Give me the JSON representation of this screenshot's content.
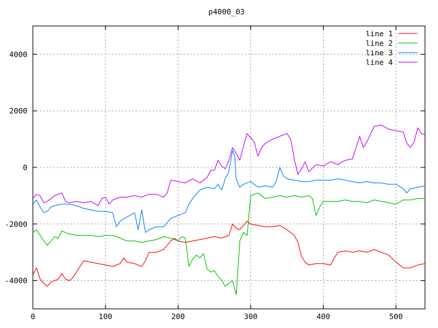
{
  "chart_data": {
    "type": "line",
    "title": "p4000_03",
    "xlabel": "",
    "ylabel": "",
    "xlim": [
      0,
      540
    ],
    "ylim": [
      -5000,
      5000
    ],
    "xticks": [
      0,
      100,
      200,
      300,
      400,
      500
    ],
    "yticks": [
      -4000,
      -2000,
      0,
      2000,
      4000
    ],
    "grid": true,
    "legend_position": "top-right",
    "series": [
      {
        "name": "line 1",
        "color": "#ff0000",
        "points": [
          [
            0,
            -3800
          ],
          [
            5,
            -3550
          ],
          [
            10,
            -3950
          ],
          [
            15,
            -4100
          ],
          [
            20,
            -4200
          ],
          [
            25,
            -4050
          ],
          [
            30,
            -4000
          ],
          [
            35,
            -3950
          ],
          [
            40,
            -3750
          ],
          [
            45,
            -3950
          ],
          [
            50,
            -4000
          ],
          [
            55,
            -3900
          ],
          [
            60,
            -3700
          ],
          [
            65,
            -3500
          ],
          [
            70,
            -3300
          ],
          [
            80,
            -3350
          ],
          [
            90,
            -3400
          ],
          [
            100,
            -3450
          ],
          [
            110,
            -3500
          ],
          [
            120,
            -3400
          ],
          [
            125,
            -3200
          ],
          [
            130,
            -3350
          ],
          [
            140,
            -3400
          ],
          [
            150,
            -3500
          ],
          [
            155,
            -3300
          ],
          [
            160,
            -3000
          ],
          [
            170,
            -3000
          ],
          [
            180,
            -2900
          ],
          [
            185,
            -2750
          ],
          [
            190,
            -2600
          ],
          [
            195,
            -2500
          ],
          [
            200,
            -2600
          ],
          [
            210,
            -2650
          ],
          [
            220,
            -2600
          ],
          [
            230,
            -2550
          ],
          [
            240,
            -2500
          ],
          [
            250,
            -2450
          ],
          [
            260,
            -2500
          ],
          [
            270,
            -2400
          ],
          [
            275,
            -2000
          ],
          [
            280,
            -2150
          ],
          [
            285,
            -2200
          ],
          [
            290,
            -2050
          ],
          [
            295,
            -1900
          ],
          [
            300,
            -2000
          ],
          [
            310,
            -2050
          ],
          [
            320,
            -2100
          ],
          [
            330,
            -2100
          ],
          [
            340,
            -2050
          ],
          [
            350,
            -2200
          ],
          [
            360,
            -2400
          ],
          [
            365,
            -2650
          ],
          [
            370,
            -3150
          ],
          [
            375,
            -3350
          ],
          [
            380,
            -3450
          ],
          [
            390,
            -3400
          ],
          [
            400,
            -3400
          ],
          [
            410,
            -3450
          ],
          [
            415,
            -3200
          ],
          [
            420,
            -3000
          ],
          [
            430,
            -2950
          ],
          [
            440,
            -3000
          ],
          [
            450,
            -2950
          ],
          [
            460,
            -3000
          ],
          [
            470,
            -2900
          ],
          [
            480,
            -3000
          ],
          [
            490,
            -3100
          ],
          [
            500,
            -3350
          ],
          [
            510,
            -3550
          ],
          [
            520,
            -3550
          ],
          [
            530,
            -3450
          ],
          [
            540,
            -3400
          ]
        ]
      },
      {
        "name": "line 2",
        "color": "#00c000",
        "points": [
          [
            0,
            -2300
          ],
          [
            5,
            -2200
          ],
          [
            10,
            -2400
          ],
          [
            15,
            -2600
          ],
          [
            20,
            -2750
          ],
          [
            25,
            -2600
          ],
          [
            30,
            -2450
          ],
          [
            35,
            -2500
          ],
          [
            40,
            -2250
          ],
          [
            45,
            -2300
          ],
          [
            50,
            -2350
          ],
          [
            60,
            -2400
          ],
          [
            70,
            -2400
          ],
          [
            80,
            -2400
          ],
          [
            90,
            -2450
          ],
          [
            100,
            -2400
          ],
          [
            110,
            -2400
          ],
          [
            120,
            -2500
          ],
          [
            130,
            -2600
          ],
          [
            140,
            -2600
          ],
          [
            150,
            -2650
          ],
          [
            160,
            -2600
          ],
          [
            170,
            -2550
          ],
          [
            180,
            -2450
          ],
          [
            190,
            -2500
          ],
          [
            200,
            -2600
          ],
          [
            205,
            -2450
          ],
          [
            210,
            -2500
          ],
          [
            215,
            -3500
          ],
          [
            220,
            -3250
          ],
          [
            225,
            -3100
          ],
          [
            230,
            -3200
          ],
          [
            235,
            -3050
          ],
          [
            240,
            -3600
          ],
          [
            245,
            -3700
          ],
          [
            250,
            -3650
          ],
          [
            255,
            -3850
          ],
          [
            260,
            -4000
          ],
          [
            265,
            -4200
          ],
          [
            270,
            -4100
          ],
          [
            275,
            -4000
          ],
          [
            280,
            -4500
          ],
          [
            285,
            -2600
          ],
          [
            290,
            -2300
          ],
          [
            295,
            -2400
          ],
          [
            300,
            -1000
          ],
          [
            310,
            -900
          ],
          [
            320,
            -1100
          ],
          [
            330,
            -1050
          ],
          [
            340,
            -1000
          ],
          [
            350,
            -1050
          ],
          [
            360,
            -1000
          ],
          [
            370,
            -1050
          ],
          [
            380,
            -1000
          ],
          [
            385,
            -1100
          ],
          [
            390,
            -1700
          ],
          [
            395,
            -1400
          ],
          [
            400,
            -1200
          ],
          [
            410,
            -1200
          ],
          [
            420,
            -1200
          ],
          [
            430,
            -1150
          ],
          [
            440,
            -1200
          ],
          [
            450,
            -1200
          ],
          [
            460,
            -1250
          ],
          [
            470,
            -1150
          ],
          [
            480,
            -1200
          ],
          [
            490,
            -1250
          ],
          [
            500,
            -1300
          ],
          [
            510,
            -1150
          ],
          [
            520,
            -1150
          ],
          [
            530,
            -1100
          ],
          [
            540,
            -1100
          ]
        ]
      },
      {
        "name": "line 3",
        "color": "#0080ff",
        "points": [
          [
            0,
            -1300
          ],
          [
            5,
            -1150
          ],
          [
            10,
            -1400
          ],
          [
            15,
            -1600
          ],
          [
            20,
            -1550
          ],
          [
            25,
            -1400
          ],
          [
            30,
            -1350
          ],
          [
            40,
            -1300
          ],
          [
            50,
            -1300
          ],
          [
            60,
            -1350
          ],
          [
            70,
            -1450
          ],
          [
            80,
            -1500
          ],
          [
            90,
            -1550
          ],
          [
            100,
            -1550
          ],
          [
            110,
            -1600
          ],
          [
            115,
            -2100
          ],
          [
            120,
            -1900
          ],
          [
            130,
            -1750
          ],
          [
            140,
            -1600
          ],
          [
            145,
            -2200
          ],
          [
            150,
            -1500
          ],
          [
            155,
            -2300
          ],
          [
            160,
            -2200
          ],
          [
            170,
            -2100
          ],
          [
            180,
            -2100
          ],
          [
            190,
            -1800
          ],
          [
            200,
            -1700
          ],
          [
            210,
            -1600
          ],
          [
            215,
            -1300
          ],
          [
            220,
            -1100
          ],
          [
            230,
            -800
          ],
          [
            240,
            -700
          ],
          [
            250,
            -750
          ],
          [
            255,
            -600
          ],
          [
            260,
            -800
          ],
          [
            265,
            -400
          ],
          [
            270,
            -150
          ],
          [
            275,
            600
          ],
          [
            278,
            400
          ],
          [
            280,
            -400
          ],
          [
            285,
            -700
          ],
          [
            290,
            -600
          ],
          [
            300,
            -500
          ],
          [
            310,
            -700
          ],
          [
            320,
            -650
          ],
          [
            330,
            -700
          ],
          [
            335,
            -500
          ],
          [
            340,
            0
          ],
          [
            345,
            -300
          ],
          [
            350,
            -400
          ],
          [
            360,
            -450
          ],
          [
            370,
            -500
          ],
          [
            380,
            -500
          ],
          [
            390,
            -450
          ],
          [
            400,
            -450
          ],
          [
            410,
            -450
          ],
          [
            420,
            -400
          ],
          [
            430,
            -450
          ],
          [
            440,
            -500
          ],
          [
            450,
            -550
          ],
          [
            460,
            -500
          ],
          [
            470,
            -550
          ],
          [
            480,
            -550
          ],
          [
            490,
            -600
          ],
          [
            500,
            -600
          ],
          [
            510,
            -750
          ],
          [
            515,
            -900
          ],
          [
            520,
            -750
          ],
          [
            530,
            -700
          ],
          [
            540,
            -650
          ]
        ]
      },
      {
        "name": "line 4",
        "color": "#c000ff",
        "points": [
          [
            0,
            -1100
          ],
          [
            5,
            -950
          ],
          [
            10,
            -1000
          ],
          [
            15,
            -1250
          ],
          [
            20,
            -1200
          ],
          [
            30,
            -1000
          ],
          [
            40,
            -900
          ],
          [
            45,
            -1200
          ],
          [
            50,
            -1250
          ],
          [
            60,
            -1200
          ],
          [
            70,
            -1250
          ],
          [
            80,
            -1200
          ],
          [
            90,
            -1350
          ],
          [
            95,
            -1100
          ],
          [
            100,
            -1050
          ],
          [
            105,
            -1300
          ],
          [
            110,
            -1150
          ],
          [
            120,
            -1050
          ],
          [
            130,
            -1050
          ],
          [
            140,
            -1000
          ],
          [
            150,
            -1050
          ],
          [
            160,
            -950
          ],
          [
            170,
            -950
          ],
          [
            180,
            -1050
          ],
          [
            185,
            -900
          ],
          [
            190,
            -450
          ],
          [
            200,
            -500
          ],
          [
            210,
            -550
          ],
          [
            220,
            -400
          ],
          [
            230,
            -550
          ],
          [
            240,
            -350
          ],
          [
            245,
            -100
          ],
          [
            250,
            -100
          ],
          [
            255,
            250
          ],
          [
            260,
            50
          ],
          [
            265,
            -50
          ],
          [
            270,
            250
          ],
          [
            275,
            700
          ],
          [
            280,
            500
          ],
          [
            285,
            250
          ],
          [
            290,
            750
          ],
          [
            295,
            1200
          ],
          [
            300,
            1050
          ],
          [
            305,
            900
          ],
          [
            310,
            400
          ],
          [
            315,
            700
          ],
          [
            320,
            850
          ],
          [
            330,
            1000
          ],
          [
            340,
            1100
          ],
          [
            350,
            1200
          ],
          [
            355,
            1000
          ],
          [
            360,
            300
          ],
          [
            365,
            -250
          ],
          [
            370,
            -50
          ],
          [
            375,
            200
          ],
          [
            380,
            -150
          ],
          [
            390,
            100
          ],
          [
            400,
            50
          ],
          [
            410,
            200
          ],
          [
            420,
            100
          ],
          [
            430,
            250
          ],
          [
            440,
            300
          ],
          [
            445,
            700
          ],
          [
            450,
            1100
          ],
          [
            455,
            700
          ],
          [
            460,
            900
          ],
          [
            470,
            1450
          ],
          [
            480,
            1500
          ],
          [
            490,
            1350
          ],
          [
            500,
            1300
          ],
          [
            510,
            1250
          ],
          [
            515,
            850
          ],
          [
            520,
            700
          ],
          [
            525,
            900
          ],
          [
            530,
            1400
          ],
          [
            535,
            1200
          ],
          [
            540,
            1150
          ]
        ]
      }
    ]
  }
}
